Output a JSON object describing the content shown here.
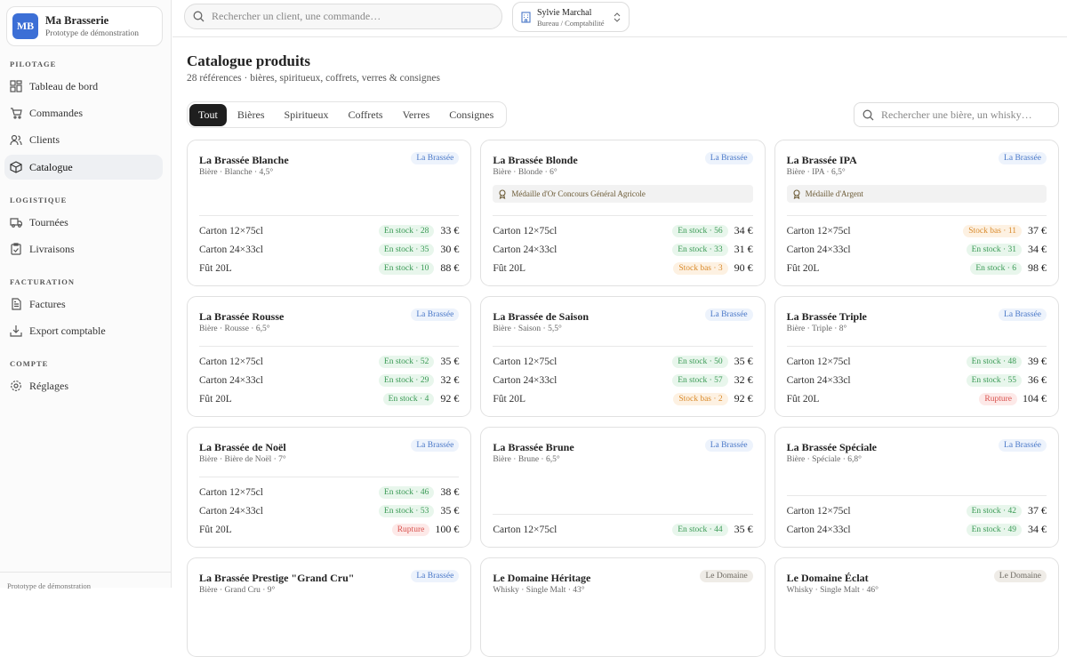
{
  "sidebar": {
    "brand": {
      "initials": "MB",
      "name": "Ma Brasserie",
      "subtitle": "Prototype de démonstration"
    },
    "sections": [
      {
        "title": "PILOTAGE",
        "items": [
          "Tableau de bord",
          "Commandes",
          "Clients",
          "Catalogue"
        ]
      },
      {
        "title": "LOGISTIQUE",
        "items": [
          "Tournées",
          "Livraisons"
        ]
      },
      {
        "title": "FACTURATION",
        "items": [
          "Factures",
          "Export comptable"
        ]
      },
      {
        "title": "COMPTE",
        "items": [
          "Réglages"
        ]
      }
    ],
    "footer": "Prototype de démonstration"
  },
  "topbar": {
    "search_placeholder": "Rechercher un client, une commande…",
    "user": {
      "name": "Sylvie Marchal",
      "role": "Bureau / Comptabilité"
    }
  },
  "main": {
    "title": "Catalogue produits",
    "subtitle": "28 références · bières, spiritueux, coffrets, verres & consignes",
    "tabs": [
      "Tout",
      "Bières",
      "Spiritueux",
      "Coffrets",
      "Verres",
      "Consignes"
    ],
    "active_tab": 0,
    "search_placeholder": "Rechercher une bière, un whisky…",
    "products": [
      {
        "name": "La Brassée Blanche",
        "meta": "Bière · Blanche · 4,5°",
        "badge": "La Brassée",
        "badge_tone": "blue",
        "rows": [
          {
            "format": "Carton 12×75cl",
            "stock": "En stock · 28",
            "tone": "green",
            "price": "33 €"
          },
          {
            "format": "Carton 24×33cl",
            "stock": "En stock · 35",
            "tone": "green",
            "price": "30 €"
          },
          {
            "format": "Fût 20L",
            "stock": "En stock · 10",
            "tone": "green",
            "price": "88 €"
          }
        ]
      },
      {
        "name": "La Brassée Blonde",
        "meta": "Bière · Blonde · 6°",
        "badge": "La Brassée",
        "badge_tone": "blue",
        "medal": "Médaille d'Or Concours Général Agricole",
        "rows": [
          {
            "format": "Carton 12×75cl",
            "stock": "En stock · 56",
            "tone": "green",
            "price": "34 €"
          },
          {
            "format": "Carton 24×33cl",
            "stock": "En stock · 33",
            "tone": "green",
            "price": "31 €"
          },
          {
            "format": "Fût 20L",
            "stock": "Stock bas · 3",
            "tone": "orange",
            "price": "90 €"
          }
        ]
      },
      {
        "name": "La Brassée IPA",
        "meta": "Bière · IPA · 6,5°",
        "badge": "La Brassée",
        "badge_tone": "blue",
        "medal": "Médaille d'Argent",
        "rows": [
          {
            "format": "Carton 12×75cl",
            "stock": "Stock bas · 11",
            "tone": "orange",
            "price": "37 €"
          },
          {
            "format": "Carton 24×33cl",
            "stock": "En stock · 31",
            "tone": "green",
            "price": "34 €"
          },
          {
            "format": "Fût 20L",
            "stock": "En stock · 6",
            "tone": "green",
            "price": "98 €"
          }
        ]
      },
      {
        "name": "La Brassée Rousse",
        "meta": "Bière · Rousse · 6,5°",
        "badge": "La Brassée",
        "badge_tone": "blue",
        "rows": [
          {
            "format": "Carton 12×75cl",
            "stock": "En stock · 52",
            "tone": "green",
            "price": "35 €"
          },
          {
            "format": "Carton 24×33cl",
            "stock": "En stock · 29",
            "tone": "green",
            "price": "32 €"
          },
          {
            "format": "Fût 20L",
            "stock": "En stock · 4",
            "tone": "green",
            "price": "92 €"
          }
        ]
      },
      {
        "name": "La Brassée de Saison",
        "meta": "Bière · Saison · 5,5°",
        "badge": "La Brassée",
        "badge_tone": "blue",
        "rows": [
          {
            "format": "Carton 12×75cl",
            "stock": "En stock · 50",
            "tone": "green",
            "price": "35 €"
          },
          {
            "format": "Carton 24×33cl",
            "stock": "En stock · 57",
            "tone": "green",
            "price": "32 €"
          },
          {
            "format": "Fût 20L",
            "stock": "Stock bas · 2",
            "tone": "orange",
            "price": "92 €"
          }
        ]
      },
      {
        "name": "La Brassée Triple",
        "meta": "Bière · Triple · 8°",
        "badge": "La Brassée",
        "badge_tone": "blue",
        "rows": [
          {
            "format": "Carton 12×75cl",
            "stock": "En stock · 48",
            "tone": "green",
            "price": "39 €"
          },
          {
            "format": "Carton 24×33cl",
            "stock": "En stock · 55",
            "tone": "green",
            "price": "36 €"
          },
          {
            "format": "Fût 20L",
            "stock": "Rupture",
            "tone": "red",
            "price": "104 €"
          }
        ]
      },
      {
        "name": "La Brassée de Noël",
        "meta": "Bière · Bière de Noël · 7°",
        "badge": "La Brassée",
        "badge_tone": "blue",
        "rows": [
          {
            "format": "Carton 12×75cl",
            "stock": "En stock · 46",
            "tone": "green",
            "price": "38 €"
          },
          {
            "format": "Carton 24×33cl",
            "stock": "En stock · 53",
            "tone": "green",
            "price": "35 €"
          },
          {
            "format": "Fût 20L",
            "stock": "Rupture",
            "tone": "red",
            "price": "100 €"
          }
        ]
      },
      {
        "name": "La Brassée Brune",
        "meta": "Bière · Brune · 6,5°",
        "badge": "La Brassée",
        "badge_tone": "blue",
        "rows": [
          {
            "format": "Carton 12×75cl",
            "stock": "En stock · 44",
            "tone": "green",
            "price": "35 €"
          }
        ]
      },
      {
        "name": "La Brassée Spéciale",
        "meta": "Bière · Spéciale · 6,8°",
        "badge": "La Brassée",
        "badge_tone": "blue",
        "rows": [
          {
            "format": "Carton 12×75cl",
            "stock": "En stock · 42",
            "tone": "green",
            "price": "37 €"
          },
          {
            "format": "Carton 24×33cl",
            "stock": "En stock · 49",
            "tone": "green",
            "price": "34 €"
          }
        ]
      },
      {
        "name": "La Brassée Prestige \"Grand Cru\"",
        "meta": "Bière · Grand Cru · 9°",
        "badge": "La Brassée",
        "badge_tone": "blue"
      },
      {
        "name": "Le Domaine Héritage",
        "meta": "Whisky · Single Malt · 43°",
        "badge": "Le Domaine",
        "badge_tone": "neutral"
      },
      {
        "name": "Le Domaine Éclat",
        "meta": "Whisky · Single Malt · 46°",
        "badge": "Le Domaine",
        "badge_tone": "neutral"
      }
    ]
  }
}
